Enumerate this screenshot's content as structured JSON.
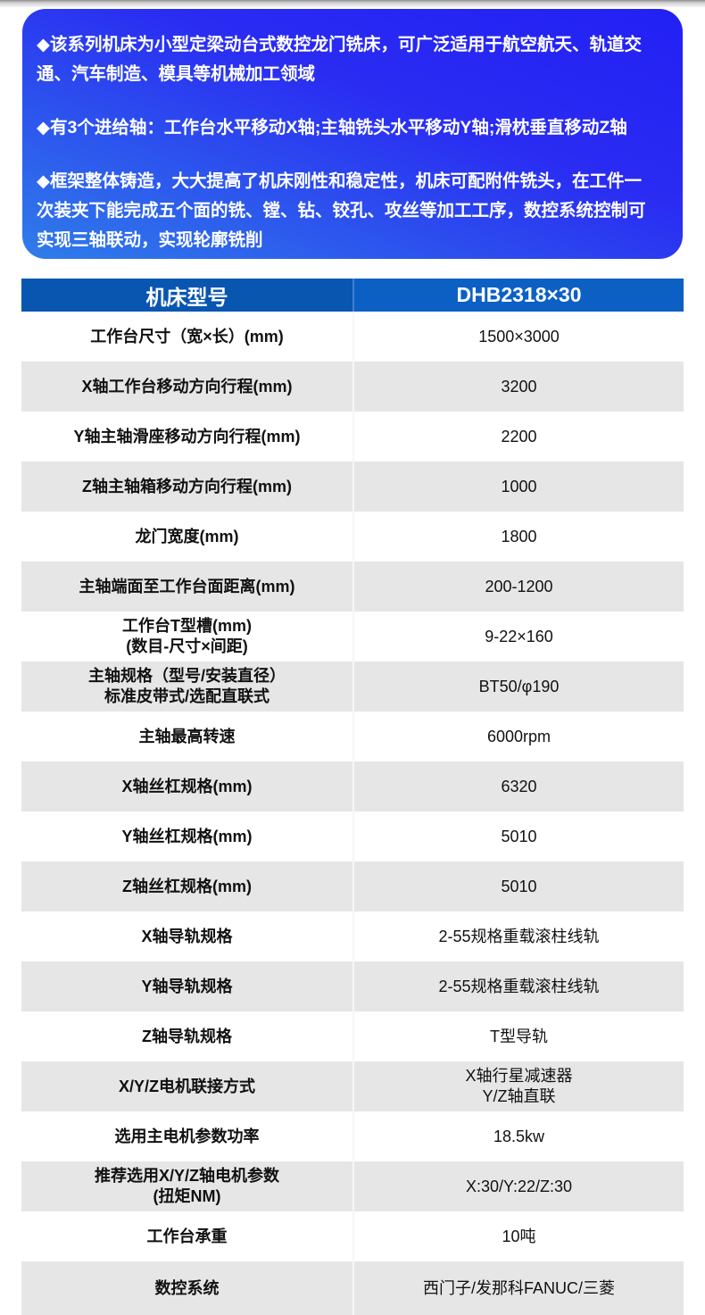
{
  "intro": {
    "bullet_icon": "◆",
    "points": [
      "该系列机床为小型定梁动台式数控龙门铣床，可广泛适用于航空航天、轨道交\n通、汽车制造、模具等机械加工领域",
      "有3个进给轴：工作台水平移动X轴;主轴铣头水平移动Y轴;滑枕垂直移动Z轴",
      "框架整体铸造，大大提高了机床刚性和稳定性，机床可配附件铣头，在工件一\n次装夹下能完成五个面的铣、镗、钻、铰孔、攻丝等加工工序，数控系统控制可\n实现三轴联动，实现轮廓铣削"
    ]
  },
  "table": {
    "header": {
      "param_col": "机床型号",
      "model_col": "DHB2318×30"
    },
    "rows": [
      {
        "label": "工作台尺寸（宽×长）(mm)",
        "value": "1500×3000"
      },
      {
        "label": "X轴工作台移动方向行程(mm)",
        "value": "3200"
      },
      {
        "label": "Y轴主轴滑座移动方向行程(mm)",
        "value": "2200"
      },
      {
        "label": "Z轴主轴箱移动方向行程(mm)",
        "value": "1000"
      },
      {
        "label": "龙门宽度(mm)",
        "value": "1800"
      },
      {
        "label": "主轴端面至工作台面距离(mm)",
        "value": "200-1200"
      },
      {
        "label": "工作台T型槽(mm)\n(数目-尺寸×间距)",
        "value": "9-22×160"
      },
      {
        "label": "主轴规格（型号/安装直径）\n标准皮带式/选配直联式",
        "value": "BT50/φ190"
      },
      {
        "label": "主轴最高转速",
        "value": "6000rpm"
      },
      {
        "label": "X轴丝杠规格(mm)",
        "value": "6320"
      },
      {
        "label": "Y轴丝杠规格(mm)",
        "value": "5010"
      },
      {
        "label": "Z轴丝杠规格(mm)",
        "value": "5010"
      },
      {
        "label": "X轴导轨规格",
        "value": "2-55规格重载滚柱线轨"
      },
      {
        "label": "Y轴导轨规格",
        "value": "2-55规格重载滚柱线轨"
      },
      {
        "label": "Z轴导轨规格",
        "value": "T型导轨"
      },
      {
        "label": "X/Y/Z电机联接方式",
        "value": "X轴行星减速器\nY/Z轴直联"
      },
      {
        "label": "选用主电机参数功率",
        "value": "18.5kw"
      },
      {
        "label": "推荐选用X/Y/Z轴电机参数\n(扭矩NM)",
        "value": "X:30/Y:22/Z:30"
      },
      {
        "label": "工作台承重",
        "value": "10吨"
      },
      {
        "label": "数控系统",
        "value": "西门子/发那科FANUC/三菱"
      }
    ]
  },
  "colors": {
    "card_gradient_start": "#2f7de9",
    "card_gradient_mid": "#2a2cf2",
    "card_gradient_end": "#2220f4",
    "header_left_bg": "#0956b0",
    "header_right_bg": "#0c60c4",
    "row_alt_bg": "#e6e6e6"
  }
}
